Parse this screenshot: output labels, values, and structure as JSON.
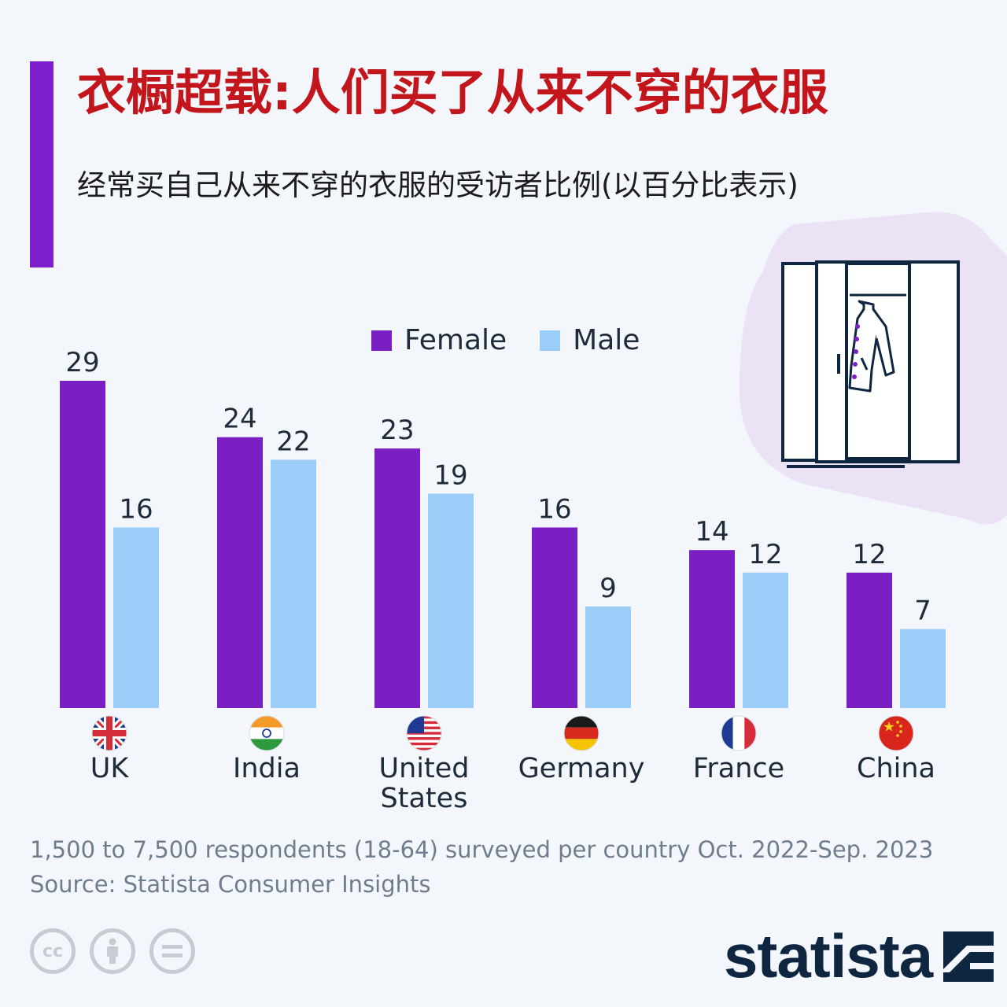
{
  "header": {
    "title": "衣橱超载:人们买了从来不穿的衣服",
    "subtitle": "经常买自己从来不穿的衣服的受访者比例(以百分比表示)"
  },
  "colors": {
    "accent": "#7d1fcc",
    "female": "#7a1fc4",
    "male": "#9bcdf9",
    "title": "#c2151c"
  },
  "chart_data": {
    "type": "bar",
    "categories": [
      "UK",
      "India",
      "United States",
      "Germany",
      "France",
      "China"
    ],
    "category_lines": [
      [
        "UK"
      ],
      [
        "India"
      ],
      [
        "United",
        "States"
      ],
      [
        "Germany"
      ],
      [
        "France"
      ],
      [
        "China"
      ]
    ],
    "flags": [
      "uk-flag-icon",
      "india-flag-icon",
      "us-flag-icon",
      "germany-flag-icon",
      "france-flag-icon",
      "china-flag-icon"
    ],
    "series": [
      {
        "name": "Female",
        "values": [
          29,
          24,
          23,
          16,
          14,
          12
        ]
      },
      {
        "name": "Male",
        "values": [
          16,
          22,
          19,
          9,
          12,
          7
        ]
      }
    ],
    "ylim": [
      0,
      29
    ],
    "grid": false,
    "legend_position": "top-center",
    "data_labels": true
  },
  "footer": {
    "note": "1,500 to 7,500 respondents (18-64) surveyed per country Oct. 2022-Sep. 2023",
    "source": "Source: Statista Consumer Insights",
    "brand": "statista",
    "cc_icons": [
      "cc-icon",
      "attribution-icon",
      "no-derivatives-icon"
    ]
  }
}
